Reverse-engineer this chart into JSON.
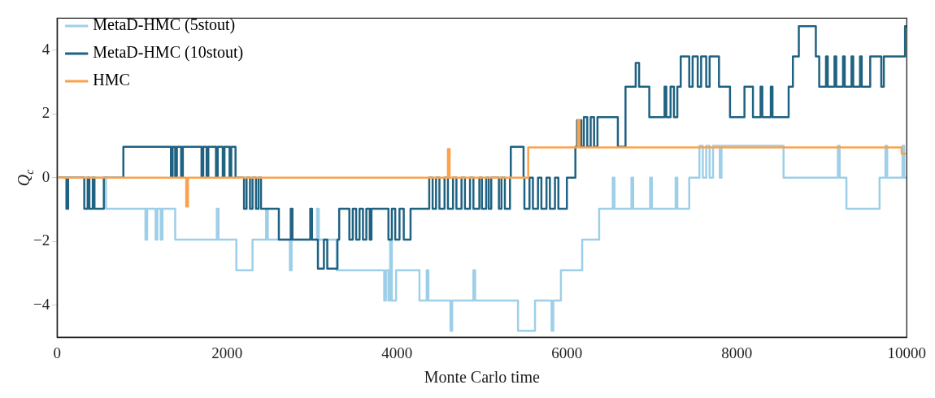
{
  "chart_data": {
    "type": "step",
    "xlabel": "Monte Carlo time",
    "ylabel": "Q$_{c}$",
    "xlim": [
      0,
      10000
    ],
    "xticks": [
      0,
      2000,
      4000,
      6000,
      8000,
      10000
    ],
    "ylim": [
      -5,
      5
    ],
    "yticks": [
      {
        "value": -4,
        "label": "−4"
      },
      {
        "value": -2,
        "label": "−2"
      },
      0,
      2,
      4
    ],
    "grid": false,
    "legend": "top left",
    "line_style": "solid",
    "marker": "none",
    "series": [
      {
        "name": "MetaD-HMC (5stout)",
        "color": "#9ecfe8",
        "x": [
          0,
          575,
          1040,
          1060,
          1160,
          1180,
          1220,
          1240,
          1390,
          1880,
          1900,
          2110,
          2300,
          2460,
          2480,
          2740,
          2760,
          3060,
          3080,
          3290,
          3850,
          3870,
          3900,
          3920,
          3940,
          3990,
          4265,
          4350,
          4370,
          4630,
          4650,
          4900,
          4920,
          5425,
          5625,
          5820,
          5840,
          5930,
          6180,
          6380,
          6540,
          6560,
          6760,
          6780,
          6980,
          7000,
          7280,
          7300,
          7440,
          7560,
          7600,
          7640,
          7680,
          7720,
          7800,
          7820,
          8550,
          9190,
          9210,
          9290,
          9680,
          9750,
          9770,
          9950,
          9970,
          10000
        ],
        "values": [
          0,
          -0.97,
          -1.94,
          -0.97,
          -1.94,
          -0.97,
          -1.94,
          -0.97,
          -1.94,
          -0.97,
          -1.94,
          -2.9,
          -1.94,
          -0.97,
          -1.94,
          -2.9,
          -1.94,
          -0.97,
          -1.94,
          -2.9,
          -3.85,
          -2.9,
          -3.85,
          -1.94,
          -3.85,
          -2.9,
          -3.85,
          -2.9,
          -3.85,
          -4.8,
          -3.85,
          -2.9,
          -3.85,
          -4.8,
          -3.85,
          -4.8,
          -3.85,
          -2.9,
          -1.94,
          -0.97,
          0,
          -0.97,
          0,
          -0.97,
          0,
          -0.97,
          0,
          -0.97,
          0,
          1,
          0,
          1,
          0,
          1,
          0,
          1,
          0,
          1,
          0,
          -0.97,
          0,
          1,
          0,
          1,
          0,
          0
        ]
      },
      {
        "name": "MetaD-HMC (10stout)",
        "color": "#1f6282",
        "x": [
          0,
          110,
          130,
          320,
          360,
          380,
          420,
          440,
          550,
          780,
          1340,
          1360,
          1390,
          1410,
          1460,
          1480,
          1540,
          1700,
          1720,
          1760,
          1780,
          1870,
          1890,
          1950,
          1970,
          2030,
          2050,
          2100,
          2200,
          2230,
          2270,
          2300,
          2340,
          2370,
          2400,
          2610,
          2750,
          2770,
          2980,
          3000,
          3070,
          3140,
          3180,
          3300,
          3320,
          3440,
          3480,
          3520,
          3560,
          3600,
          3640,
          3680,
          3700,
          3900,
          3940,
          3980,
          4030,
          4080,
          4160,
          4380,
          4420,
          4460,
          4500,
          4560,
          4600,
          4660,
          4700,
          4760,
          4800,
          4860,
          4900,
          4970,
          5000,
          5050,
          5080,
          5110,
          5200,
          5230,
          5270,
          5330,
          5340,
          5490,
          5500,
          5560,
          5600,
          5660,
          5700,
          5760,
          5800,
          5860,
          5900,
          6000,
          6100,
          6120,
          6170,
          6200,
          6240,
          6280,
          6320,
          6360,
          6430,
          6600,
          6690,
          6810,
          6850,
          6970,
          7150,
          7170,
          7220,
          7260,
          7300,
          7340,
          7440,
          7480,
          7540,
          7580,
          7640,
          7680,
          7790,
          7920,
          8090,
          8190,
          8280,
          8300,
          8400,
          8420,
          8610,
          8660,
          8730,
          8930,
          8970,
          9050,
          9070,
          9150,
          9170,
          9250,
          9270,
          9350,
          9370,
          9450,
          9470,
          9570,
          9700,
          9730,
          9980,
          10000
        ],
        "values": [
          0,
          -0.97,
          0,
          -0.97,
          0,
          -0.97,
          0,
          -0.97,
          0,
          0.97,
          0,
          0.97,
          0,
          0.97,
          0,
          0.97,
          0.97,
          0,
          0.97,
          0,
          0.97,
          0,
          0.97,
          0,
          0.97,
          0,
          0.97,
          0,
          -0.97,
          0,
          -0.97,
          0,
          -0.97,
          0,
          -0.97,
          -1.94,
          -0.97,
          -1.94,
          -0.97,
          -1.94,
          -2.85,
          -1.94,
          -2.85,
          -1.94,
          -0.97,
          -1.94,
          -0.97,
          -1.94,
          -0.97,
          -1.94,
          -0.97,
          -1.94,
          -0.97,
          -1.94,
          -0.97,
          -1.94,
          -0.97,
          -1.94,
          -0.97,
          0,
          -0.97,
          0,
          -0.97,
          0,
          -0.97,
          0,
          -0.97,
          0,
          -0.97,
          0,
          -0.97,
          0,
          -0.97,
          0,
          -0.97,
          0,
          -0.97,
          0,
          -0.97,
          0,
          0.97,
          0,
          -0.97,
          0,
          -0.97,
          0,
          -0.97,
          0,
          -0.97,
          0,
          -0.97,
          0,
          0.97,
          1.8,
          0.97,
          1.9,
          0.97,
          1.9,
          0.97,
          1.9,
          1.9,
          0.97,
          2.85,
          3.6,
          2.85,
          1.9,
          2.85,
          1.9,
          2.85,
          1.9,
          2.85,
          3.8,
          2.85,
          3.8,
          2.85,
          3.8,
          2.85,
          3.8,
          2.85,
          1.9,
          2.85,
          1.9,
          2.85,
          1.9,
          2.85,
          1.9,
          2.85,
          3.8,
          4.75,
          3.8,
          2.85,
          3.8,
          2.85,
          3.8,
          2.85,
          3.8,
          2.85,
          3.8,
          2.85,
          3.8,
          2.85,
          3.8,
          2.85,
          3.8,
          4.75,
          4.75
        ]
      },
      {
        "name": "HMC",
        "color": "#fba14b",
        "x": [
          0,
          1520,
          1540,
          4600,
          4620,
          5545,
          6130,
          6150,
          9940,
          9990
        ],
        "values": [
          0,
          -0.9,
          0,
          0.9,
          0,
          0.95,
          1.8,
          0.95,
          0.75,
          0.75
        ]
      }
    ]
  }
}
